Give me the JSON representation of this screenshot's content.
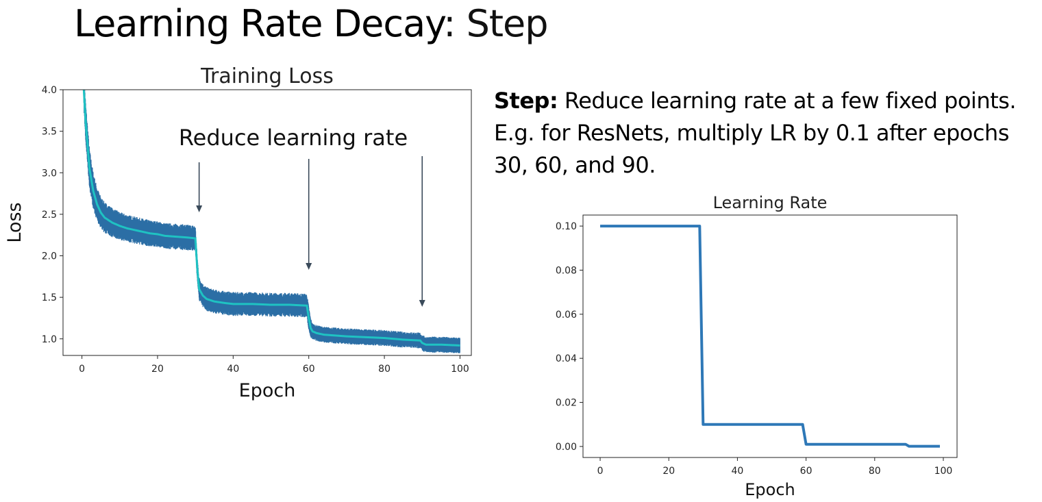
{
  "slide": {
    "title_main": "Learning Rate Decay",
    "title_sep": ": ",
    "title_sub": "Step"
  },
  "description": {
    "bold": "Step:",
    "line1": " Reduce learning rate at a few fixed points.",
    "line2": "E.g. for ResNets, multiply LR by 0.1 after epochs",
    "line3": "30, 60, and 90."
  },
  "chart_data": [
    {
      "type": "line",
      "title": "Training Loss",
      "xlabel": "Epoch",
      "ylabel": "Loss",
      "xlim": [
        -5,
        103
      ],
      "ylim": [
        0.8,
        4.0
      ],
      "xticks": [
        0,
        20,
        40,
        60,
        80,
        100
      ],
      "yticks": [
        1.0,
        1.5,
        2.0,
        2.5,
        3.0,
        3.5,
        4.0
      ],
      "ytick_labels": [
        "1.0",
        "1.5",
        "2.0",
        "2.5",
        "3.0",
        "3.5",
        "4.0"
      ],
      "grid": false,
      "annotation": "Reduce learning rate",
      "arrow_epochs": [
        31,
        60,
        90
      ],
      "colors": {
        "band": "#2b6ea5",
        "mean": "#1fc2c2",
        "arrow": "#3a4a5a"
      },
      "series": [
        {
          "kind": "smoothed",
          "x": [
            0.5,
            1,
            2,
            3,
            4,
            5,
            6,
            8,
            10,
            12,
            15,
            18,
            20,
            22,
            25,
            28,
            30,
            30.5,
            31,
            32,
            33,
            35,
            38,
            40,
            45,
            50,
            55,
            59.5,
            60,
            60.5,
            61,
            62,
            64,
            67,
            70,
            75,
            80,
            85,
            89.5,
            90,
            91,
            95,
            100
          ],
          "y": [
            4.0,
            3.6,
            3.05,
            2.78,
            2.62,
            2.52,
            2.46,
            2.4,
            2.36,
            2.33,
            2.3,
            2.27,
            2.26,
            2.24,
            2.23,
            2.22,
            2.21,
            1.85,
            1.6,
            1.52,
            1.48,
            1.45,
            1.43,
            1.42,
            1.42,
            1.41,
            1.41,
            1.4,
            1.25,
            1.13,
            1.09,
            1.07,
            1.05,
            1.04,
            1.03,
            1.02,
            1.01,
            0.99,
            0.98,
            0.95,
            0.93,
            0.93,
            0.92
          ]
        },
        {
          "kind": "noise_half_width",
          "x": [
            0.5,
            2,
            5,
            10,
            20,
            30,
            31,
            40,
            60,
            61,
            80,
            90,
            100
          ],
          "y": [
            0.2,
            0.2,
            0.16,
            0.14,
            0.13,
            0.13,
            0.12,
            0.12,
            0.12,
            0.08,
            0.08,
            0.08,
            0.08
          ]
        }
      ]
    },
    {
      "type": "line",
      "title": "Learning Rate",
      "xlabel": "Epoch",
      "ylabel": "",
      "xlim": [
        -5,
        104
      ],
      "ylim": [
        -0.005,
        0.105
      ],
      "xticks": [
        0,
        20,
        40,
        60,
        80,
        100
      ],
      "yticks": [
        0.0,
        0.02,
        0.04,
        0.06,
        0.08,
        0.1
      ],
      "ytick_labels": [
        "0.00",
        "0.02",
        "0.04",
        "0.06",
        "0.08",
        "0.10"
      ],
      "grid": false,
      "colors": {
        "line": "#2e78b7"
      },
      "series": [
        {
          "kind": "learning_rate",
          "x": [
            0,
            29,
            30,
            59,
            60,
            89,
            90,
            99
          ],
          "y": [
            0.1,
            0.1,
            0.01,
            0.01,
            0.001,
            0.001,
            0.0001,
            0.0001
          ]
        }
      ]
    }
  ]
}
